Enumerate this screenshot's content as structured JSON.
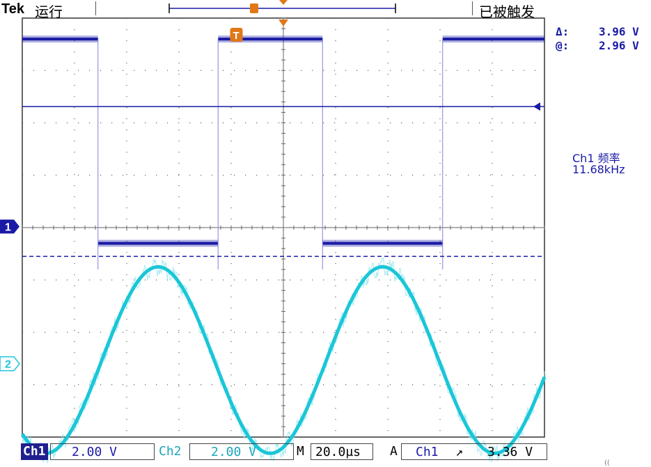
{
  "header": {
    "brand": "Tek",
    "run_state": "运行",
    "trigger_state": "已被触发"
  },
  "measurements": {
    "delta_label": "Δ:",
    "delta_value": "3.96 V",
    "at_label": "@:",
    "at_value": "2.96 V"
  },
  "frequency": {
    "label": "Ch1 频率",
    "value": "11.68kHz"
  },
  "markers": {
    "ch1": "1",
    "ch2": "2",
    "trigger_point": "T",
    "trigger_icon": "trigger-marker-icon",
    "level_icon": "trigger-level-arrow-icon"
  },
  "status": {
    "ch1_label": "Ch1",
    "ch1_scale": "2.00 V",
    "ch2_label": "Ch2",
    "ch2_scale": "2.00 V",
    "timebase_label": "M",
    "timebase_value": "20.0µs",
    "acq_label": "A",
    "trigger_source": "Ch1",
    "trigger_slope": "↗",
    "trigger_level": "3.36 V"
  },
  "colors": {
    "ch1": "#1a1aa6",
    "ch2": "#1ac6d8",
    "trigger": "#e07818",
    "grid": "#666666"
  },
  "chart_data": {
    "type": "line",
    "grid": true,
    "x_divisions": 10,
    "y_divisions": 8,
    "time_per_div_us": 20,
    "series": [
      {
        "name": "Ch1",
        "volts_per_div": 2.0,
        "shape": "square",
        "high_div": 3.6,
        "low_div": -0.3,
        "x_edges_div": [
          1.45,
          3.75,
          5.75,
          8.05
        ]
      },
      {
        "name": "Ch2",
        "volts_per_div": 2.0,
        "shape": "sine",
        "center_div": -2.53,
        "amplitude_div": 1.78,
        "period_div": 4.3,
        "peak_x_div": [
          2.6,
          6.9
        ]
      }
    ]
  }
}
